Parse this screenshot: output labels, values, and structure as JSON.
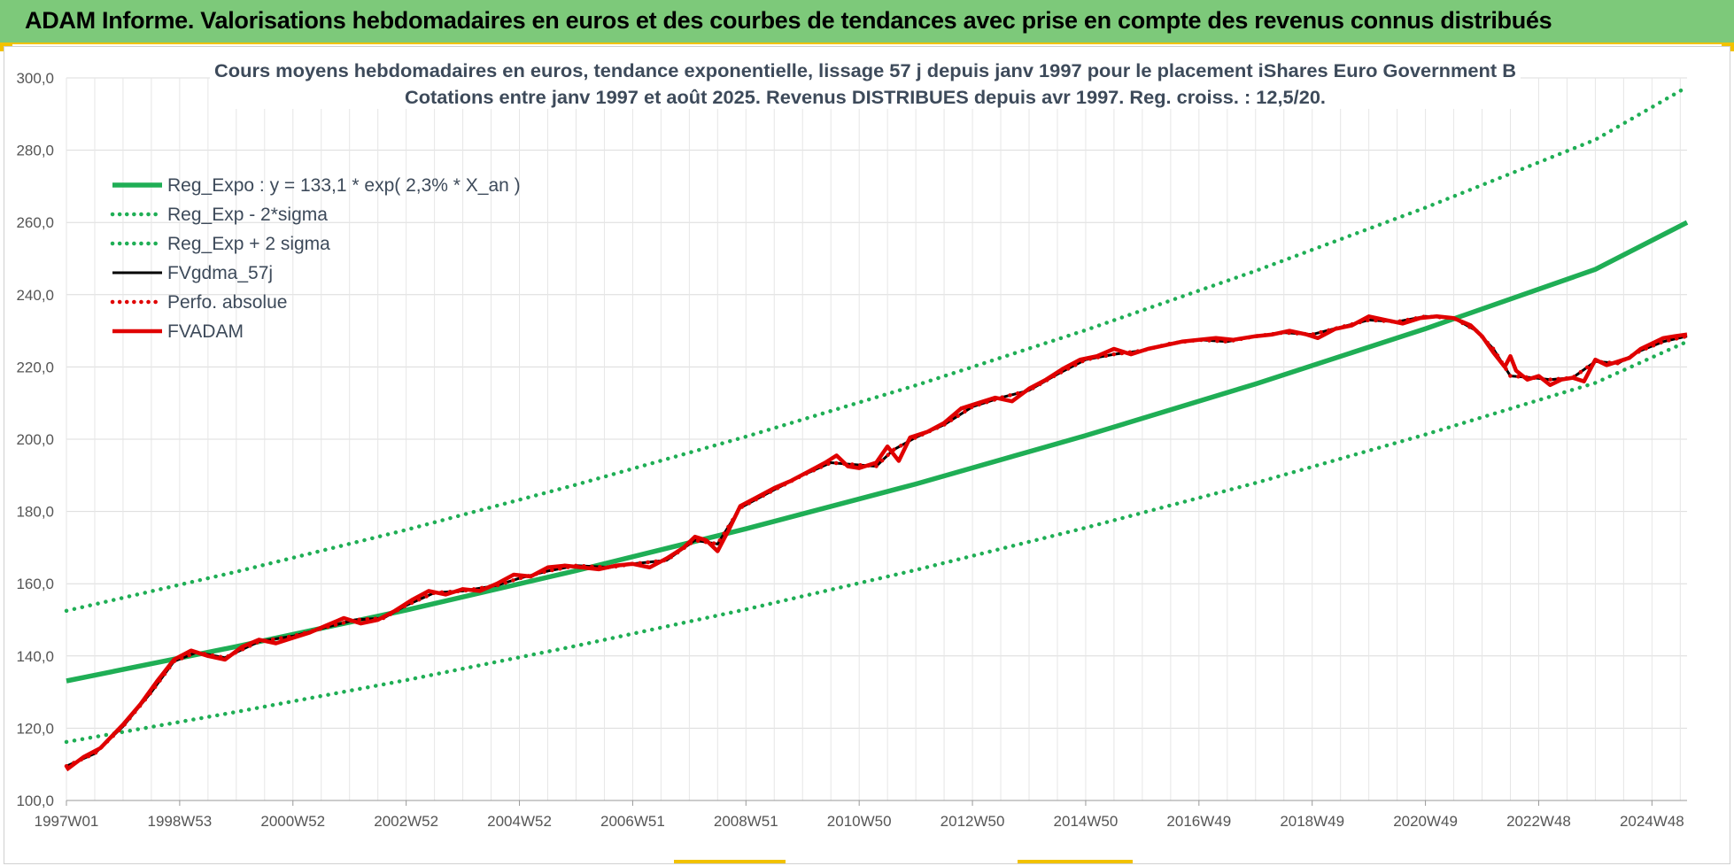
{
  "header": {
    "title": "ADAM Informe. Valorisations hebdomadaires en euros et des courbes de tendances avec prise en compte des revenus connus distribués"
  },
  "chart_data": {
    "type": "line",
    "title": "Cours moyens hebdomadaires en euros, tendance exponentielle, lissage 57 j depuis janv 1997 pour le placement iShares Euro Government B",
    "subtitle": "Cotations entre janv 1997 et août 2025.  Revenus DISTRIBUES depuis avr 1997. Reg. croiss. : 12,5/20.",
    "xlabel": "",
    "ylabel": "",
    "ylim": [
      100,
      300
    ],
    "y_ticks": [
      "100,0",
      "120,0",
      "140,0",
      "160,0",
      "180,0",
      "200,0",
      "220,0",
      "240,0",
      "260,0",
      "280,0",
      "300,0"
    ],
    "x_range": [
      1997.0,
      2025.62
    ],
    "x_ticks": [
      {
        "label": "1997W01",
        "x": 1997.0
      },
      {
        "label": "1998W53",
        "x": 1999.0
      },
      {
        "label": "2000W52",
        "x": 2001.0
      },
      {
        "label": "2002W52",
        "x": 2003.0
      },
      {
        "label": "2004W52",
        "x": 2005.0
      },
      {
        "label": "2006W51",
        "x": 2007.0
      },
      {
        "label": "2008W51",
        "x": 2009.0
      },
      {
        "label": "2010W50",
        "x": 2011.0
      },
      {
        "label": "2012W50",
        "x": 2013.0
      },
      {
        "label": "2014W50",
        "x": 2015.0
      },
      {
        "label": "2016W49",
        "x": 2017.0
      },
      {
        "label": "2018W49",
        "x": 2019.0
      },
      {
        "label": "2020W49",
        "x": 2021.0
      },
      {
        "label": "2022W48",
        "x": 2023.0
      },
      {
        "label": "2024W48",
        "x": 2025.0
      }
    ],
    "grid": true,
    "legend_position": "top-left",
    "series": [
      {
        "name": "Reg_Expo : y = 133,1 * exp( 2,3% *  X_an )",
        "color": "#1fae55",
        "style": "solid",
        "points": [
          [
            1997.0,
            133.1
          ],
          [
            2000.0,
            142.6
          ],
          [
            2003.0,
            152.7
          ],
          [
            2006.0,
            163.6
          ],
          [
            2009.0,
            175.2
          ],
          [
            2012.0,
            187.6
          ],
          [
            2015.0,
            201.0
          ],
          [
            2018.0,
            215.3
          ],
          [
            2021.0,
            230.6
          ],
          [
            2024.0,
            247.0
          ],
          [
            2025.62,
            260.0
          ]
        ]
      },
      {
        "name": "Reg_Exp - 2*sigma",
        "color": "#1fae55",
        "style": "dotted",
        "points": [
          [
            1997.0,
            116.2
          ],
          [
            2000.0,
            124.5
          ],
          [
            2003.0,
            133.3
          ],
          [
            2006.0,
            142.8
          ],
          [
            2009.0,
            152.9
          ],
          [
            2012.0,
            163.8
          ],
          [
            2015.0,
            175.5
          ],
          [
            2018.0,
            187.9
          ],
          [
            2021.0,
            201.3
          ],
          [
            2024.0,
            215.6
          ],
          [
            2025.62,
            227.0
          ]
        ]
      },
      {
        "name": "Reg_Exp + 2 sigma",
        "color": "#1fae55",
        "style": "dotted",
        "points": [
          [
            1997.0,
            152.5
          ],
          [
            2000.0,
            163.3
          ],
          [
            2003.0,
            174.9
          ],
          [
            2006.0,
            187.4
          ],
          [
            2009.0,
            200.7
          ],
          [
            2012.0,
            214.9
          ],
          [
            2015.0,
            230.2
          ],
          [
            2018.0,
            246.6
          ],
          [
            2021.0,
            264.1
          ],
          [
            2024.0,
            282.9
          ],
          [
            2025.62,
            297.5
          ]
        ]
      },
      {
        "name": "FVgdma_57j",
        "color": "#000000",
        "style": "solid",
        "points": [
          [
            1997.0,
            109.5
          ],
          [
            1997.5,
            113.0
          ],
          [
            1998.0,
            120.5
          ],
          [
            1998.5,
            130.0
          ],
          [
            1998.9,
            138.5
          ],
          [
            1999.3,
            141.0
          ],
          [
            1999.8,
            139.5
          ],
          [
            2000.4,
            144.0
          ],
          [
            2001.0,
            145.5
          ],
          [
            2001.6,
            148.0
          ],
          [
            2002.1,
            150.0
          ],
          [
            2002.6,
            150.5
          ],
          [
            2003.0,
            154.0
          ],
          [
            2003.5,
            157.5
          ],
          [
            2004.0,
            158.0
          ],
          [
            2004.6,
            159.5
          ],
          [
            2005.0,
            161.5
          ],
          [
            2005.5,
            163.5
          ],
          [
            2006.0,
            165.0
          ],
          [
            2006.6,
            164.5
          ],
          [
            2007.0,
            165.5
          ],
          [
            2007.6,
            166.5
          ],
          [
            2008.1,
            172.0
          ],
          [
            2008.5,
            171.0
          ],
          [
            2008.9,
            181.0
          ],
          [
            2009.5,
            186.0
          ],
          [
            2010.0,
            190.0
          ],
          [
            2010.5,
            193.5
          ],
          [
            2010.9,
            193.0
          ],
          [
            2011.3,
            192.5
          ],
          [
            2011.6,
            197.0
          ],
          [
            2012.0,
            200.5
          ],
          [
            2012.5,
            204.0
          ],
          [
            2013.0,
            209.0
          ],
          [
            2013.5,
            211.5
          ],
          [
            2014.0,
            213.5
          ],
          [
            2014.5,
            218.0
          ],
          [
            2015.0,
            222.0
          ],
          [
            2015.5,
            223.5
          ],
          [
            2016.0,
            224.5
          ],
          [
            2016.5,
            226.5
          ],
          [
            2017.0,
            227.5
          ],
          [
            2017.5,
            227.0
          ],
          [
            2018.0,
            228.5
          ],
          [
            2018.5,
            229.5
          ],
          [
            2019.0,
            229.0
          ],
          [
            2019.5,
            231.0
          ],
          [
            2020.0,
            233.0
          ],
          [
            2020.5,
            232.5
          ],
          [
            2021.0,
            234.0
          ],
          [
            2021.5,
            233.5
          ],
          [
            2021.9,
            230.0
          ],
          [
            2022.2,
            225.0
          ],
          [
            2022.5,
            217.5
          ],
          [
            2022.9,
            217.0
          ],
          [
            2023.2,
            216.5
          ],
          [
            2023.6,
            217.0
          ],
          [
            2024.0,
            221.5
          ],
          [
            2024.4,
            221.0
          ],
          [
            2024.8,
            224.5
          ],
          [
            2025.2,
            227.0
          ],
          [
            2025.62,
            228.5
          ]
        ]
      },
      {
        "name": "Perfo. absolue",
        "color": "#e00000",
        "style": "dotted",
        "points": [
          [
            1997.0,
            109.5
          ],
          [
            1997.5,
            113.0
          ],
          [
            1998.0,
            120.5
          ],
          [
            1998.5,
            130.0
          ],
          [
            1998.9,
            138.5
          ],
          [
            1999.3,
            141.0
          ],
          [
            1999.8,
            139.5
          ],
          [
            2000.4,
            144.0
          ],
          [
            2001.0,
            145.5
          ],
          [
            2001.6,
            148.0
          ],
          [
            2002.1,
            150.0
          ],
          [
            2002.6,
            150.5
          ],
          [
            2003.0,
            154.0
          ],
          [
            2003.5,
            157.5
          ],
          [
            2004.0,
            158.0
          ],
          [
            2004.6,
            159.5
          ],
          [
            2005.0,
            161.5
          ],
          [
            2005.5,
            163.5
          ],
          [
            2006.0,
            165.0
          ],
          [
            2006.6,
            164.5
          ],
          [
            2007.0,
            165.5
          ],
          [
            2007.6,
            166.5
          ],
          [
            2008.1,
            172.0
          ],
          [
            2008.5,
            171.0
          ],
          [
            2008.9,
            181.0
          ],
          [
            2009.5,
            186.0
          ],
          [
            2010.0,
            190.0
          ],
          [
            2010.5,
            193.5
          ],
          [
            2010.9,
            193.0
          ],
          [
            2011.3,
            192.5
          ],
          [
            2011.6,
            197.0
          ],
          [
            2012.0,
            200.5
          ],
          [
            2012.5,
            204.0
          ],
          [
            2013.0,
            209.0
          ],
          [
            2013.5,
            211.5
          ],
          [
            2014.0,
            213.5
          ],
          [
            2014.5,
            218.0
          ],
          [
            2015.0,
            222.0
          ],
          [
            2015.5,
            223.5
          ],
          [
            2016.0,
            224.5
          ],
          [
            2016.5,
            226.5
          ],
          [
            2017.0,
            227.5
          ],
          [
            2017.5,
            227.0
          ],
          [
            2018.0,
            228.5
          ],
          [
            2018.5,
            229.5
          ],
          [
            2019.0,
            229.0
          ],
          [
            2019.5,
            231.0
          ],
          [
            2020.0,
            233.0
          ],
          [
            2020.5,
            232.5
          ],
          [
            2021.0,
            234.0
          ],
          [
            2021.5,
            233.5
          ],
          [
            2021.9,
            230.0
          ],
          [
            2022.2,
            225.0
          ],
          [
            2022.5,
            217.5
          ],
          [
            2022.9,
            217.0
          ],
          [
            2023.2,
            216.5
          ],
          [
            2023.6,
            217.0
          ],
          [
            2024.0,
            221.5
          ],
          [
            2024.4,
            221.0
          ],
          [
            2024.8,
            224.5
          ],
          [
            2025.2,
            227.0
          ],
          [
            2025.62,
            228.5
          ]
        ]
      },
      {
        "name": "FVADAM",
        "color": "#e00000",
        "style": "solid-thick",
        "points": [
          [
            1997.0,
            108.5
          ],
          [
            1997.3,
            112.0
          ],
          [
            1997.6,
            114.5
          ],
          [
            1998.0,
            121.0
          ],
          [
            1998.3,
            126.5
          ],
          [
            1998.6,
            133.0
          ],
          [
            1998.9,
            139.0
          ],
          [
            1999.2,
            141.5
          ],
          [
            1999.5,
            140.0
          ],
          [
            1999.8,
            139.0
          ],
          [
            2000.1,
            142.5
          ],
          [
            2000.4,
            144.5
          ],
          [
            2000.7,
            143.5
          ],
          [
            2001.0,
            145.0
          ],
          [
            2001.3,
            146.5
          ],
          [
            2001.6,
            148.5
          ],
          [
            2001.9,
            150.5
          ],
          [
            2002.2,
            149.0
          ],
          [
            2002.5,
            150.0
          ],
          [
            2002.8,
            152.5
          ],
          [
            2003.1,
            155.5
          ],
          [
            2003.4,
            158.0
          ],
          [
            2003.7,
            157.0
          ],
          [
            2004.0,
            158.5
          ],
          [
            2004.3,
            158.0
          ],
          [
            2004.6,
            160.0
          ],
          [
            2004.9,
            162.5
          ],
          [
            2005.2,
            162.0
          ],
          [
            2005.5,
            164.5
          ],
          [
            2005.8,
            165.0
          ],
          [
            2006.1,
            164.5
          ],
          [
            2006.4,
            164.0
          ],
          [
            2006.7,
            165.0
          ],
          [
            2007.0,
            165.5
          ],
          [
            2007.3,
            164.5
          ],
          [
            2007.6,
            167.0
          ],
          [
            2007.9,
            170.0
          ],
          [
            2008.1,
            173.0
          ],
          [
            2008.3,
            172.0
          ],
          [
            2008.5,
            169.0
          ],
          [
            2008.7,
            175.0
          ],
          [
            2008.9,
            181.5
          ],
          [
            2009.2,
            184.0
          ],
          [
            2009.5,
            186.5
          ],
          [
            2009.8,
            188.5
          ],
          [
            2010.1,
            191.0
          ],
          [
            2010.4,
            193.5
          ],
          [
            2010.6,
            195.5
          ],
          [
            2010.8,
            192.5
          ],
          [
            2011.0,
            192.0
          ],
          [
            2011.3,
            193.5
          ],
          [
            2011.5,
            198.0
          ],
          [
            2011.7,
            194.0
          ],
          [
            2011.9,
            200.5
          ],
          [
            2012.2,
            202.0
          ],
          [
            2012.5,
            204.5
          ],
          [
            2012.8,
            208.5
          ],
          [
            2013.1,
            210.0
          ],
          [
            2013.4,
            211.5
          ],
          [
            2013.7,
            210.5
          ],
          [
            2014.0,
            214.0
          ],
          [
            2014.3,
            216.5
          ],
          [
            2014.6,
            219.5
          ],
          [
            2014.9,
            222.0
          ],
          [
            2015.2,
            223.0
          ],
          [
            2015.5,
            225.0
          ],
          [
            2015.8,
            223.5
          ],
          [
            2016.1,
            225.0
          ],
          [
            2016.4,
            226.0
          ],
          [
            2016.7,
            227.0
          ],
          [
            2017.0,
            227.5
          ],
          [
            2017.3,
            228.0
          ],
          [
            2017.6,
            227.5
          ],
          [
            2018.0,
            228.5
          ],
          [
            2018.3,
            229.0
          ],
          [
            2018.6,
            230.0
          ],
          [
            2018.9,
            229.0
          ],
          [
            2019.1,
            228.0
          ],
          [
            2019.4,
            230.5
          ],
          [
            2019.7,
            231.5
          ],
          [
            2020.0,
            234.0
          ],
          [
            2020.3,
            233.0
          ],
          [
            2020.6,
            232.0
          ],
          [
            2020.9,
            233.5
          ],
          [
            2021.2,
            234.0
          ],
          [
            2021.5,
            233.5
          ],
          [
            2021.8,
            231.5
          ],
          [
            2022.0,
            228.5
          ],
          [
            2022.2,
            224.0
          ],
          [
            2022.4,
            220.0
          ],
          [
            2022.5,
            223.0
          ],
          [
            2022.6,
            219.0
          ],
          [
            2022.8,
            216.5
          ],
          [
            2023.0,
            217.5
          ],
          [
            2023.2,
            215.0
          ],
          [
            2023.4,
            216.5
          ],
          [
            2023.6,
            217.0
          ],
          [
            2023.8,
            216.0
          ],
          [
            2024.0,
            222.0
          ],
          [
            2024.2,
            220.5
          ],
          [
            2024.4,
            221.5
          ],
          [
            2024.6,
            222.5
          ],
          [
            2024.8,
            225.0
          ],
          [
            2025.0,
            226.5
          ],
          [
            2025.2,
            228.0
          ],
          [
            2025.4,
            228.5
          ],
          [
            2025.62,
            229.0
          ]
        ]
      }
    ]
  }
}
